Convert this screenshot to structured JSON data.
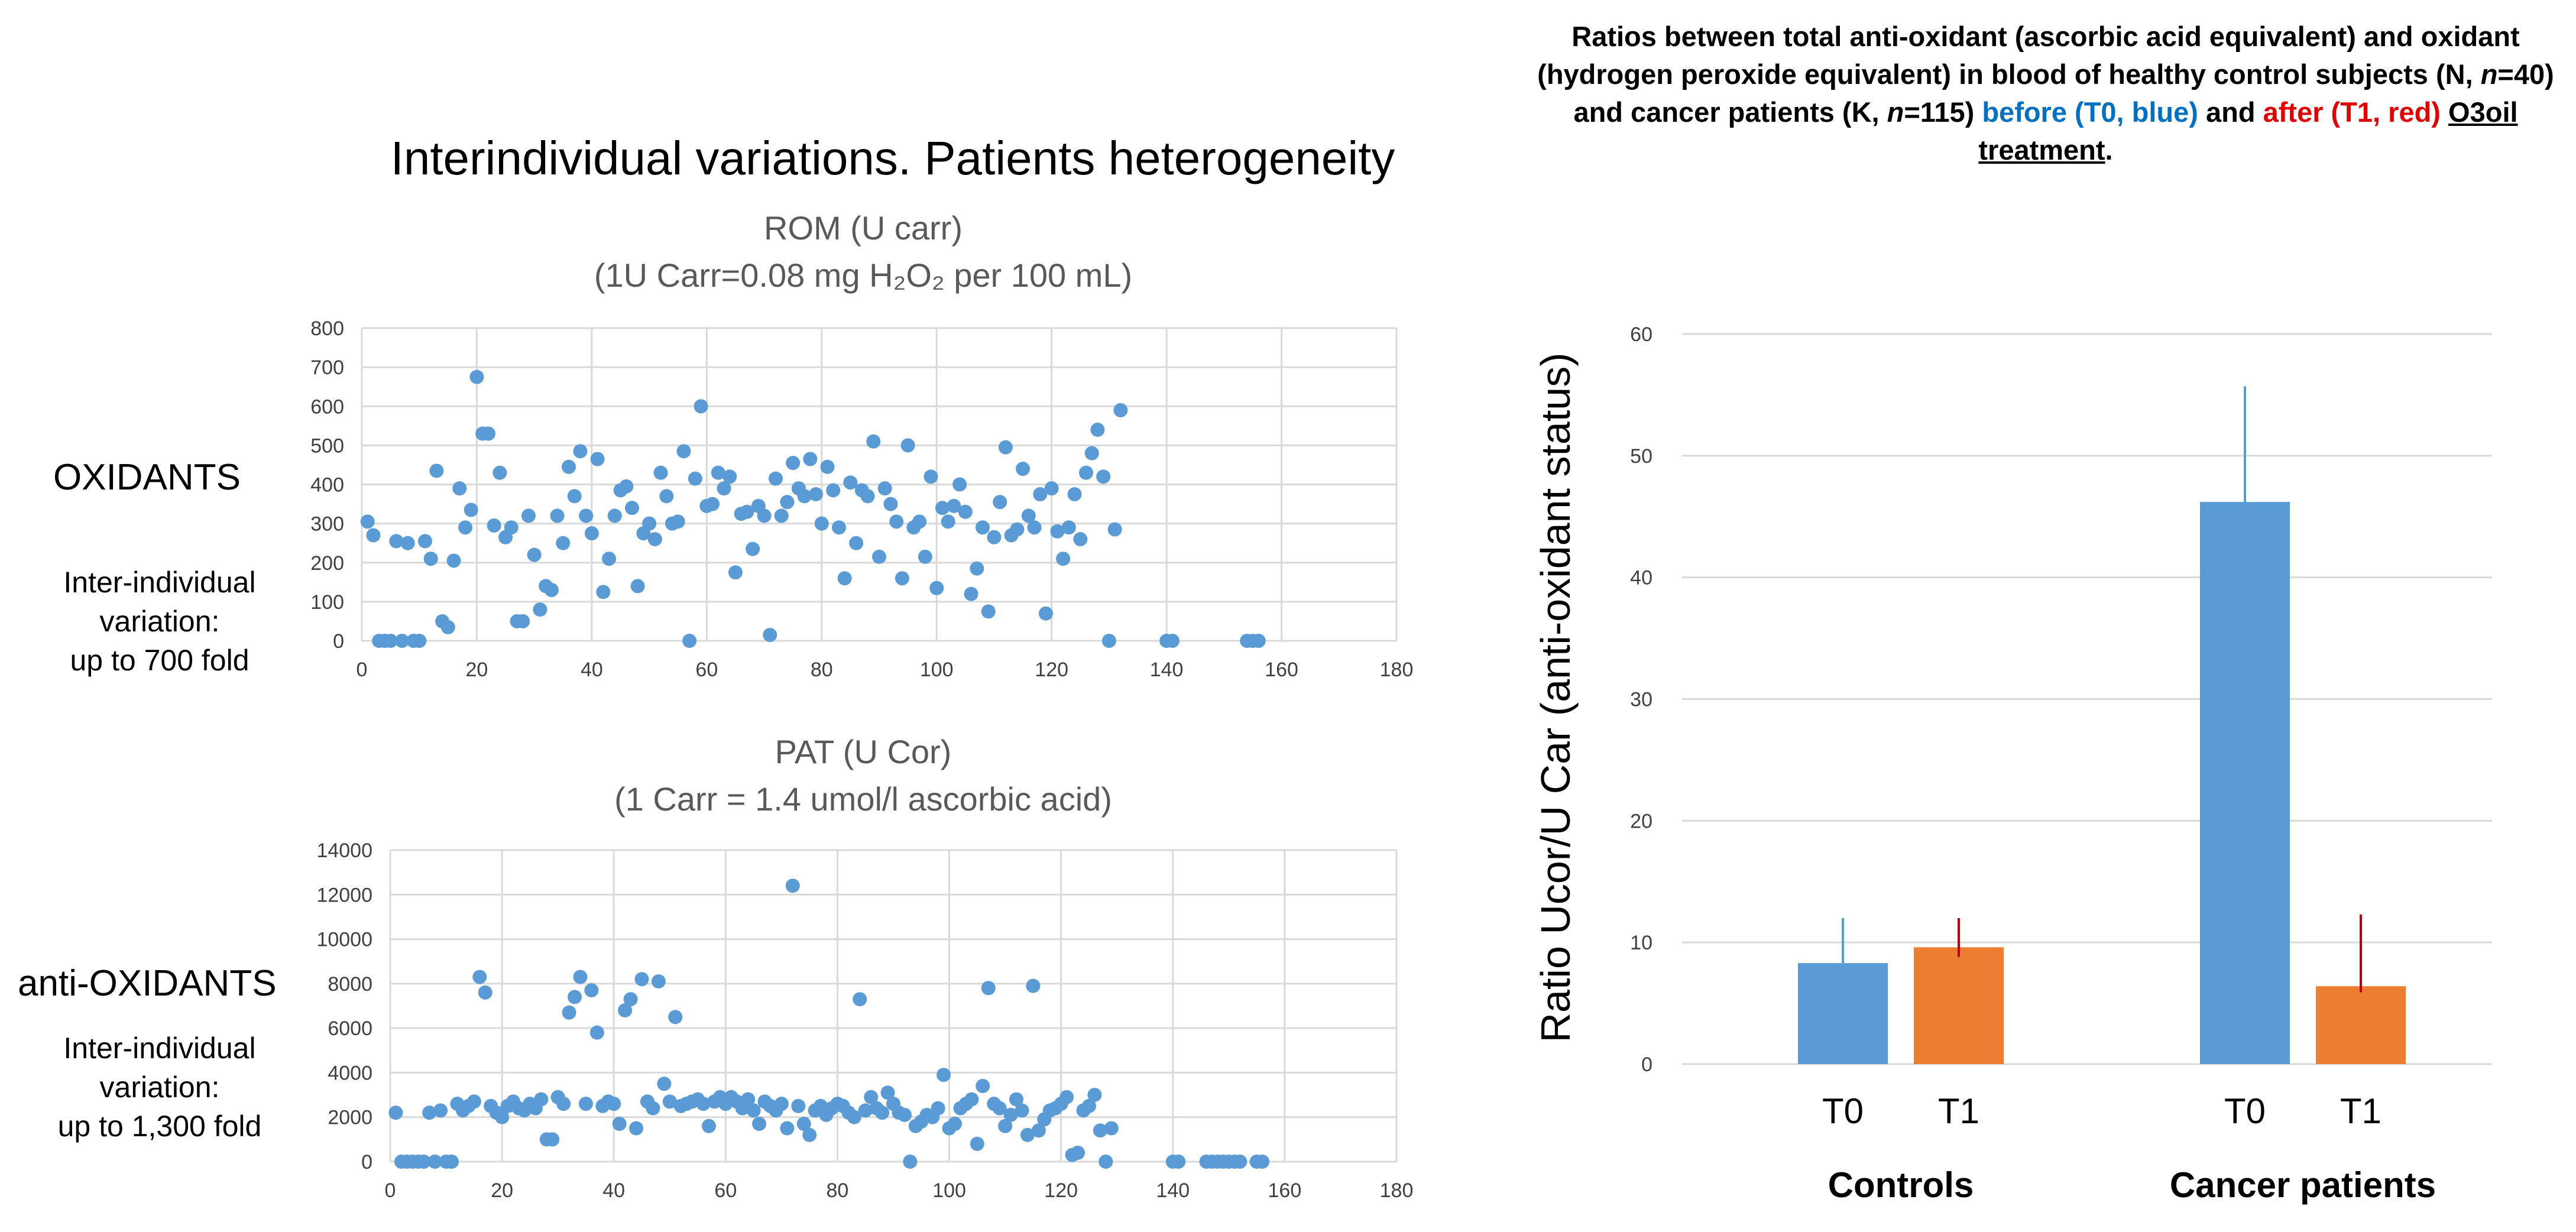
{
  "left_panel": {
    "main_title": "Interindividual variations. Patients heterogeneity",
    "oxidants": {
      "heading": "OXIDANTS",
      "note": [
        "Inter-individual",
        "variation:",
        "up to 700 fold"
      ]
    },
    "antioxidants": {
      "heading": "anti-OXIDANTS",
      "note": [
        "Inter-individual",
        "variation:",
        "up to 1,300 fold"
      ]
    }
  },
  "right_panel": {
    "title_black_1": "Ratios between total anti-oxidant (ascorbic acid equivalent) and oxidant (hydrogen peroxide equivalent) in blood of healthy control subjects (N, ",
    "title_italic_n1": "n",
    "title_black_2": "=40) and cancer patients (K, ",
    "title_italic_n2": "n",
    "title_black_3": "=115) ",
    "title_blue": "before (T0, blue)",
    "title_and": " and ",
    "title_red": "after (T1, red)",
    "title_space": " ",
    "title_underlined": "O3oil treatment",
    "title_end": "."
  },
  "colors": {
    "scatter": "#5b9bd5",
    "t0": "#5b9bd5",
    "t1": "#ed7d31",
    "t1_error": "#c00000",
    "grid": "#d9d9d9"
  },
  "chart_data": [
    {
      "id": "rom",
      "type": "scatter",
      "title": "ROM (U carr)",
      "subtitle": "(1U Carr=0.08 mg H₂O₂ per 100 mL)",
      "xlim": [
        0,
        180
      ],
      "ylim": [
        0,
        800
      ],
      "xticks": [
        0,
        20,
        40,
        60,
        80,
        100,
        120,
        140,
        160,
        180
      ],
      "yticks": [
        0,
        100,
        200,
        300,
        400,
        500,
        600,
        700,
        800
      ],
      "grid": true,
      "points": [
        [
          1,
          305
        ],
        [
          2,
          270
        ],
        [
          3,
          0
        ],
        [
          4,
          0
        ],
        [
          5,
          0
        ],
        [
          6,
          255
        ],
        [
          7,
          0
        ],
        [
          8,
          250
        ],
        [
          9,
          0
        ],
        [
          10,
          0
        ],
        [
          11,
          255
        ],
        [
          12,
          210
        ],
        [
          13,
          435
        ],
        [
          14,
          50
        ],
        [
          15,
          35
        ],
        [
          16,
          205
        ],
        [
          17,
          390
        ],
        [
          18,
          290
        ],
        [
          19,
          335
        ],
        [
          20,
          675
        ],
        [
          21,
          530
        ],
        [
          22,
          530
        ],
        [
          23,
          295
        ],
        [
          24,
          430
        ],
        [
          25,
          265
        ],
        [
          26,
          290
        ],
        [
          27,
          50
        ],
        [
          28,
          50
        ],
        [
          29,
          320
        ],
        [
          30,
          220
        ],
        [
          31,
          80
        ],
        [
          32,
          140
        ],
        [
          33,
          130
        ],
        [
          34,
          320
        ],
        [
          35,
          250
        ],
        [
          36,
          445
        ],
        [
          37,
          370
        ],
        [
          38,
          485
        ],
        [
          39,
          320
        ],
        [
          40,
          275
        ],
        [
          41,
          465
        ],
        [
          42,
          125
        ],
        [
          43,
          210
        ],
        [
          44,
          320
        ],
        [
          45,
          385
        ],
        [
          46,
          395
        ],
        [
          47,
          340
        ],
        [
          48,
          140
        ],
        [
          49,
          275
        ],
        [
          50,
          300
        ],
        [
          51,
          260
        ],
        [
          52,
          430
        ],
        [
          53,
          370
        ],
        [
          54,
          300
        ],
        [
          55,
          305
        ],
        [
          56,
          485
        ],
        [
          57,
          0
        ],
        [
          58,
          415
        ],
        [
          59,
          600
        ],
        [
          60,
          345
        ],
        [
          61,
          350
        ],
        [
          62,
          430
        ],
        [
          63,
          390
        ],
        [
          64,
          420
        ],
        [
          65,
          175
        ],
        [
          66,
          325
        ],
        [
          67,
          330
        ],
        [
          68,
          235
        ],
        [
          69,
          345
        ],
        [
          70,
          320
        ],
        [
          71,
          15
        ],
        [
          72,
          415
        ],
        [
          73,
          320
        ],
        [
          74,
          355
        ],
        [
          75,
          455
        ],
        [
          76,
          390
        ],
        [
          77,
          370
        ],
        [
          78,
          465
        ],
        [
          79,
          375
        ],
        [
          80,
          300
        ],
        [
          81,
          445
        ],
        [
          82,
          385
        ],
        [
          83,
          290
        ],
        [
          84,
          160
        ],
        [
          85,
          405
        ],
        [
          86,
          250
        ],
        [
          87,
          385
        ],
        [
          88,
          370
        ],
        [
          89,
          510
        ],
        [
          90,
          215
        ],
        [
          91,
          390
        ],
        [
          92,
          350
        ],
        [
          93,
          305
        ],
        [
          94,
          160
        ],
        [
          95,
          500
        ],
        [
          96,
          290
        ],
        [
          97,
          305
        ],
        [
          98,
          215
        ],
        [
          99,
          420
        ],
        [
          100,
          135
        ],
        [
          101,
          340
        ],
        [
          102,
          305
        ],
        [
          103,
          345
        ],
        [
          104,
          400
        ],
        [
          105,
          330
        ],
        [
          106,
          120
        ],
        [
          107,
          185
        ],
        [
          108,
          290
        ],
        [
          109,
          75
        ],
        [
          110,
          265
        ],
        [
          111,
          355
        ],
        [
          112,
          495
        ],
        [
          113,
          270
        ],
        [
          114,
          285
        ],
        [
          115,
          440
        ],
        [
          116,
          320
        ],
        [
          117,
          290
        ],
        [
          118,
          375
        ],
        [
          119,
          70
        ],
        [
          120,
          390
        ],
        [
          121,
          280
        ],
        [
          122,
          210
        ],
        [
          123,
          290
        ],
        [
          124,
          375
        ],
        [
          125,
          260
        ],
        [
          126,
          430
        ],
        [
          127,
          480
        ],
        [
          128,
          540
        ],
        [
          129,
          420
        ],
        [
          130,
          0
        ],
        [
          131,
          285
        ],
        [
          132,
          590
        ],
        [
          140,
          0
        ],
        [
          141,
          0
        ],
        [
          154,
          0
        ],
        [
          155,
          0
        ],
        [
          156,
          0
        ]
      ]
    },
    {
      "id": "pat",
      "type": "scatter",
      "title": "PAT (U Cor)",
      "subtitle": "(1 Carr = 1.4 umol/l ascorbic acid)",
      "xlim": [
        0,
        180
      ],
      "ylim": [
        0,
        14000
      ],
      "xticks": [
        0,
        20,
        40,
        60,
        80,
        100,
        120,
        140,
        160,
        180
      ],
      "yticks": [
        0,
        2000,
        4000,
        6000,
        8000,
        10000,
        12000,
        14000
      ],
      "grid": true,
      "points": [
        [
          1,
          2200
        ],
        [
          2,
          0
        ],
        [
          3,
          0
        ],
        [
          4,
          0
        ],
        [
          5,
          0
        ],
        [
          6,
          0
        ],
        [
          7,
          2200
        ],
        [
          8,
          0
        ],
        [
          9,
          2300
        ],
        [
          10,
          0
        ],
        [
          11,
          0
        ],
        [
          12,
          2600
        ],
        [
          13,
          2300
        ],
        [
          14,
          2500
        ],
        [
          15,
          2700
        ],
        [
          16,
          8300
        ],
        [
          17,
          7600
        ],
        [
          18,
          2500
        ],
        [
          19,
          2200
        ],
        [
          20,
          2000
        ],
        [
          21,
          2500
        ],
        [
          22,
          2700
        ],
        [
          23,
          2400
        ],
        [
          24,
          2300
        ],
        [
          25,
          2600
        ],
        [
          26,
          2400
        ],
        [
          27,
          2800
        ],
        [
          28,
          1000
        ],
        [
          29,
          1000
        ],
        [
          30,
          2900
        ],
        [
          31,
          2600
        ],
        [
          32,
          6700
        ],
        [
          33,
          7400
        ],
        [
          34,
          8300
        ],
        [
          35,
          2600
        ],
        [
          36,
          7700
        ],
        [
          37,
          5800
        ],
        [
          38,
          2500
        ],
        [
          39,
          2700
        ],
        [
          40,
          2600
        ],
        [
          41,
          1700
        ],
        [
          42,
          6800
        ],
        [
          43,
          7300
        ],
        [
          44,
          1500
        ],
        [
          45,
          8200
        ],
        [
          46,
          2700
        ],
        [
          47,
          2400
        ],
        [
          48,
          8100
        ],
        [
          49,
          3500
        ],
        [
          50,
          2700
        ],
        [
          51,
          6500
        ],
        [
          52,
          2500
        ],
        [
          53,
          2600
        ],
        [
          54,
          2700
        ],
        [
          55,
          2800
        ],
        [
          56,
          2600
        ],
        [
          57,
          1600
        ],
        [
          58,
          2700
        ],
        [
          59,
          2900
        ],
        [
          60,
          2600
        ],
        [
          61,
          2900
        ],
        [
          62,
          2700
        ],
        [
          63,
          2400
        ],
        [
          64,
          2800
        ],
        [
          65,
          2300
        ],
        [
          66,
          1700
        ],
        [
          67,
          2700
        ],
        [
          68,
          2500
        ],
        [
          69,
          2300
        ],
        [
          70,
          2600
        ],
        [
          71,
          1500
        ],
        [
          72,
          12400
        ],
        [
          73,
          2500
        ],
        [
          74,
          1700
        ],
        [
          75,
          1200
        ],
        [
          76,
          2300
        ],
        [
          77,
          2500
        ],
        [
          78,
          2100
        ],
        [
          79,
          2400
        ],
        [
          80,
          2600
        ],
        [
          81,
          2500
        ],
        [
          82,
          2200
        ],
        [
          83,
          2000
        ],
        [
          84,
          7300
        ],
        [
          85,
          2300
        ],
        [
          86,
          2900
        ],
        [
          87,
          2400
        ],
        [
          88,
          2200
        ],
        [
          89,
          3100
        ],
        [
          90,
          2600
        ],
        [
          91,
          2200
        ],
        [
          92,
          2100
        ],
        [
          93,
          0
        ],
        [
          94,
          1600
        ],
        [
          95,
          1800
        ],
        [
          96,
          2100
        ],
        [
          97,
          2000
        ],
        [
          98,
          2400
        ],
        [
          99,
          3900
        ],
        [
          100,
          1500
        ],
        [
          101,
          1700
        ],
        [
          102,
          2400
        ],
        [
          103,
          2600
        ],
        [
          104,
          2800
        ],
        [
          105,
          800
        ],
        [
          106,
          3400
        ],
        [
          107,
          7800
        ],
        [
          108,
          2600
        ],
        [
          109,
          2400
        ],
        [
          110,
          1600
        ],
        [
          111,
          2100
        ],
        [
          112,
          2800
        ],
        [
          113,
          2300
        ],
        [
          114,
          1200
        ],
        [
          115,
          7900
        ],
        [
          116,
          1400
        ],
        [
          117,
          1900
        ],
        [
          118,
          2300
        ],
        [
          119,
          2400
        ],
        [
          120,
          2600
        ],
        [
          121,
          2900
        ],
        [
          122,
          300
        ],
        [
          123,
          400
        ],
        [
          124,
          2300
        ],
        [
          125,
          2500
        ],
        [
          126,
          3000
        ],
        [
          127,
          1400
        ],
        [
          128,
          0
        ],
        [
          129,
          1500
        ],
        [
          140,
          0
        ],
        [
          141,
          0
        ],
        [
          146,
          0
        ],
        [
          147,
          0
        ],
        [
          148,
          0
        ],
        [
          149,
          0
        ],
        [
          150,
          0
        ],
        [
          151,
          0
        ],
        [
          152,
          0
        ],
        [
          155,
          0
        ],
        [
          156,
          0
        ]
      ]
    },
    {
      "id": "ratio",
      "type": "bar",
      "ylabel": "Ratio Ucor/U Car (anti-oxidant status)",
      "ylim": [
        0,
        60
      ],
      "yticks": [
        0,
        10,
        20,
        30,
        40,
        50,
        60
      ],
      "grid": true,
      "groups": [
        {
          "label": "Controls",
          "bars": [
            {
              "label": "T0",
              "value": 8.3,
              "err_high": 12.0
            },
            {
              "label": "T1",
              "value": 9.6,
              "err_low": 8.8,
              "err_high": 12.0
            }
          ]
        },
        {
          "label": "Cancer patients",
          "bars": [
            {
              "label": "T0",
              "value": 46.2,
              "err_high": 55.7
            },
            {
              "label": "T1",
              "value": 6.4,
              "err_low": 5.9,
              "err_high": 12.3
            }
          ]
        }
      ]
    }
  ]
}
